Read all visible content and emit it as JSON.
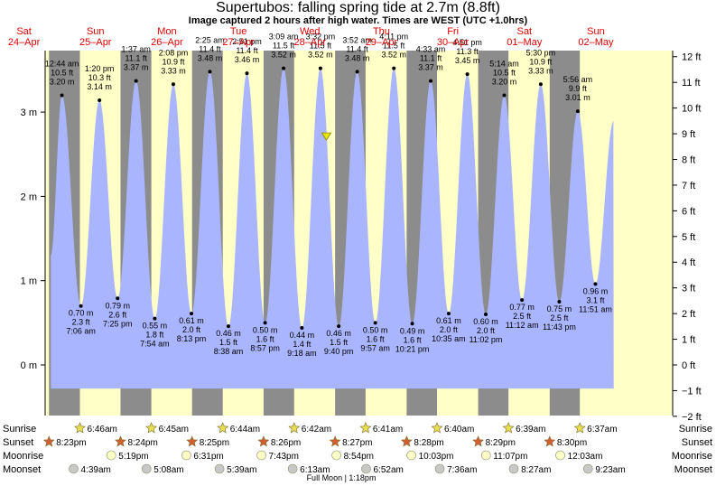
{
  "header": {
    "title": "Supertubos: falling  spring tide at 2.7m (8.8ft)",
    "subtitle": "Image captured 2 hours after high water. Times are WEST (UTC +1.0hrs)"
  },
  "chart_data": {
    "type": "area",
    "title": "Supertubos: falling  spring tide at 2.7m (8.8ft)",
    "subtitle": "Image captured 2 hours after high water. Times are WEST (UTC +1.0hrs)",
    "left_axis": {
      "unit": "m",
      "ticks": [
        "0 m",
        "1 m",
        "2 m",
        "3 m"
      ],
      "values": [
        0,
        1,
        2,
        3
      ]
    },
    "right_axis": {
      "unit": "ft",
      "ticks": [
        "−2 ft",
        "−1 ft",
        "0 ft",
        "1 ft",
        "2 ft",
        "3 ft",
        "4 ft",
        "5 ft",
        "6 ft",
        "7 ft",
        "8 ft",
        "9 ft",
        "10 ft",
        "11 ft",
        "12 ft"
      ],
      "values": [
        -2,
        -1,
        0,
        1,
        2,
        3,
        4,
        5,
        6,
        7,
        8,
        9,
        10,
        11,
        12
      ]
    },
    "ylim_m": [
      -0.65,
      3.75
    ],
    "days": [
      {
        "dow": "Sat",
        "date": "24–Apr"
      },
      {
        "dow": "Sun",
        "date": "25–Apr"
      },
      {
        "dow": "Mon",
        "date": "26–Apr"
      },
      {
        "dow": "Tue",
        "date": "27–Apr"
      },
      {
        "dow": "Wed",
        "date": "28–Apr"
      },
      {
        "dow": "Thu",
        "date": "29–Apr"
      },
      {
        "dow": "Fri",
        "date": "30–Apr"
      },
      {
        "dow": "Sat",
        "date": "01–May"
      },
      {
        "dow": "Sun",
        "date": "02–May"
      }
    ],
    "series": [
      {
        "name": "tide",
        "extremes": [
          {
            "type": "high",
            "day": 1,
            "time": "12:44 am",
            "m": 3.2,
            "ft": "10.5 ft",
            "m_label": "3.20 m"
          },
          {
            "type": "low",
            "day": 1,
            "time": "7:06 am",
            "m": 0.7,
            "ft": "2.3 ft",
            "m_label": "0.70 m"
          },
          {
            "type": "high",
            "day": 1,
            "time": "1:20 pm",
            "m": 3.14,
            "ft": "10.3 ft",
            "m_label": "3.14 m"
          },
          {
            "type": "low",
            "day": 1,
            "time": "7:25 pm",
            "m": 0.79,
            "ft": "2.6 ft",
            "m_label": "0.79 m"
          },
          {
            "type": "high",
            "day": 2,
            "time": "1:37 am",
            "m": 3.37,
            "ft": "11.1 ft",
            "m_label": "3.37 m"
          },
          {
            "type": "low",
            "day": 2,
            "time": "7:54 am",
            "m": 0.55,
            "ft": "1.8 ft",
            "m_label": "0.55 m"
          },
          {
            "type": "high",
            "day": 2,
            "time": "2:08 pm",
            "m": 3.33,
            "ft": "10.9 ft",
            "m_label": "3.33 m"
          },
          {
            "type": "low",
            "day": 2,
            "time": "8:13 pm",
            "m": 0.61,
            "ft": "2.0 ft",
            "m_label": "0.61 m"
          },
          {
            "type": "high",
            "day": 3,
            "time": "2:25 am",
            "m": 3.48,
            "ft": "11.4 ft",
            "m_label": "3.48 m"
          },
          {
            "type": "low",
            "day": 3,
            "time": "8:38 am",
            "m": 0.46,
            "ft": "1.5 ft",
            "m_label": "0.46 m"
          },
          {
            "type": "high",
            "day": 3,
            "time": "2:51 pm",
            "m": 3.46,
            "ft": "11.4 ft",
            "m_label": "3.46 m"
          },
          {
            "type": "low",
            "day": 3,
            "time": "8:57 pm",
            "m": 0.5,
            "ft": "1.6 ft",
            "m_label": "0.50 m"
          },
          {
            "type": "high",
            "day": 4,
            "time": "3:09 am",
            "m": 3.52,
            "ft": "11.5 ft",
            "m_label": "3.52 m"
          },
          {
            "type": "low",
            "day": 4,
            "time": "9:18 am",
            "m": 0.44,
            "ft": "1.4 ft",
            "m_label": "0.44 m"
          },
          {
            "type": "high",
            "day": 4,
            "time": "3:32 pm",
            "m": 3.52,
            "ft": "11.5 ft",
            "m_label": "3.52 m"
          },
          {
            "type": "low",
            "day": 4,
            "time": "9:40 pm",
            "m": 0.46,
            "ft": "1.5 ft",
            "m_label": "0.46 m"
          },
          {
            "type": "high",
            "day": 5,
            "time": "3:52 am",
            "m": 3.48,
            "ft": "11.4 ft",
            "m_label": "3.48 m"
          },
          {
            "type": "low",
            "day": 5,
            "time": "9:57 am",
            "m": 0.5,
            "ft": "1.6 ft",
            "m_label": "0.50 m"
          },
          {
            "type": "high",
            "day": 5,
            "time": "4:11 pm",
            "m": 3.52,
            "ft": "11.5 ft",
            "m_label": "3.52 m"
          },
          {
            "type": "low",
            "day": 5,
            "time": "10:21 pm",
            "m": 0.49,
            "ft": "1.6 ft",
            "m_label": "0.49 m"
          },
          {
            "type": "high",
            "day": 6,
            "time": "4:33 am",
            "m": 3.37,
            "ft": "11.1 ft",
            "m_label": "3.37 m"
          },
          {
            "type": "low",
            "day": 6,
            "time": "10:35 am",
            "m": 0.61,
            "ft": "2.0 ft",
            "m_label": "0.61 m"
          },
          {
            "type": "high",
            "day": 6,
            "time": "4:51 pm",
            "m": 3.45,
            "ft": "11.3 ft",
            "m_label": "3.45 m"
          },
          {
            "type": "low",
            "day": 6,
            "time": "11:02 pm",
            "m": 0.6,
            "ft": "2.0 ft",
            "m_label": "0.60 m"
          },
          {
            "type": "high",
            "day": 7,
            "time": "5:14 am",
            "m": 3.2,
            "ft": "10.5 ft",
            "m_label": "3.20 m"
          },
          {
            "type": "low",
            "day": 7,
            "time": "11:12 am",
            "m": 0.77,
            "ft": "2.5 ft",
            "m_label": "0.77 m"
          },
          {
            "type": "high",
            "day": 7,
            "time": "5:30 pm",
            "m": 3.33,
            "ft": "10.9 ft",
            "m_label": "3.33 m"
          },
          {
            "type": "low",
            "day": 7,
            "time": "11:43 pm",
            "m": 0.75,
            "ft": "2.5 ft",
            "m_label": "0.75 m"
          },
          {
            "type": "high",
            "day": 8,
            "time": "5:56 am",
            "m": 3.01,
            "ft": "9.9 ft",
            "m_label": "3.01 m"
          },
          {
            "type": "low",
            "day": 8,
            "time": "11:51 am",
            "m": 0.96,
            "ft": "3.1 ft",
            "m_label": "0.96 m"
          }
        ]
      }
    ],
    "data_range": {
      "start_day": 0,
      "start_time": "9:00 pm",
      "start_m": 1.3,
      "end_day": 8,
      "end_time": "6:00 pm",
      "end_m": 2.9
    },
    "current": {
      "day": 4,
      "time": "5:32 pm",
      "m": 2.7
    },
    "rows": {
      "sunrise": {
        "label": "Sunrise",
        "times": [
          "6:46am",
          "6:45am",
          "6:44am",
          "6:42am",
          "6:41am",
          "6:40am",
          "6:39am",
          "6:37am"
        ]
      },
      "sunset": {
        "label": "Sunset",
        "times": [
          "8:23pm",
          "8:24pm",
          "8:25pm",
          "8:26pm",
          "8:27pm",
          "8:28pm",
          "8:29pm",
          "8:30pm"
        ]
      },
      "moonrise": {
        "label": "Moonrise",
        "times": [
          "5:19pm",
          "6:31pm",
          "7:43pm",
          "8:54pm",
          "10:03pm",
          "11:07pm",
          "12:03am"
        ]
      },
      "moonset": {
        "label": "Moonset",
        "times": [
          "4:39am",
          "5:08am",
          "5:39am",
          "6:13am",
          "6:52am",
          "7:36am",
          "8:27am",
          "9:23am"
        ]
      },
      "moon_note": "Full Moon | 1:18pm"
    },
    "colors": {
      "day": "#ffffc8",
      "night": "#8c8c8c",
      "water": "#a9b6ff",
      "day_label": "#e00000",
      "current_marker": "#e8e800",
      "sun_star": "#e8e050",
      "set_star": "#d06030",
      "moon": "#ffffc8",
      "moonset": "#c8c8c8"
    }
  }
}
